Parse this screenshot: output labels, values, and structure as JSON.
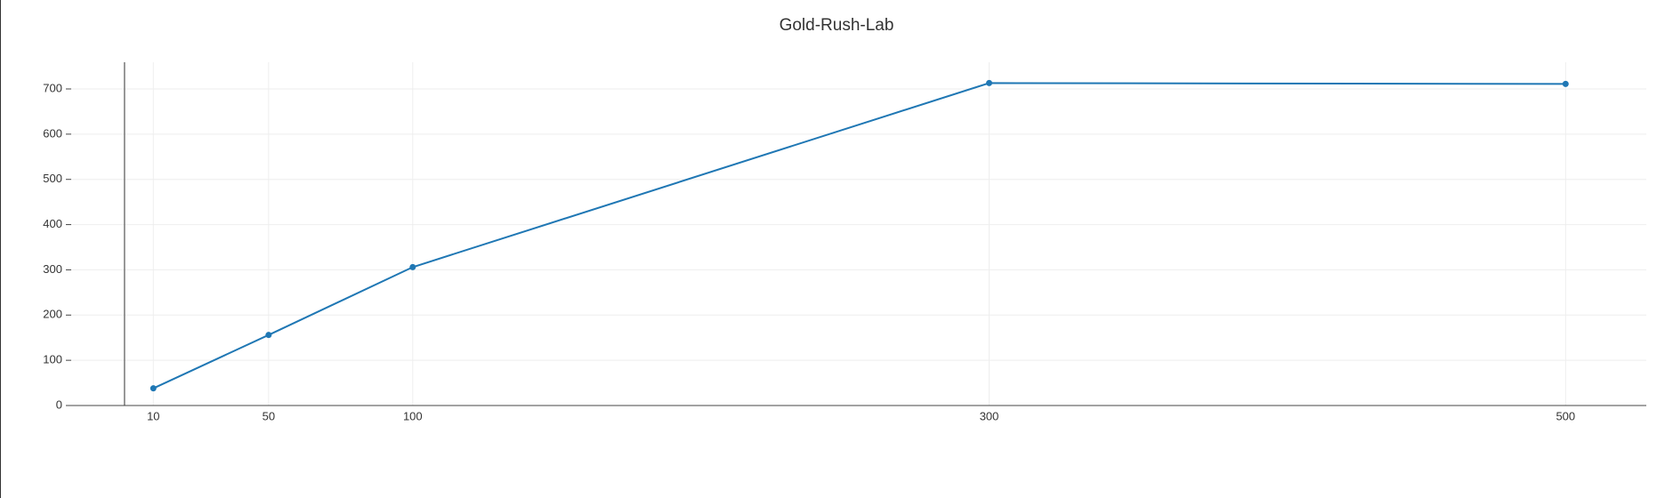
{
  "chart_data": {
    "type": "line",
    "title": "Gold-Rush-Lab",
    "x": [
      10,
      50,
      100,
      300,
      500
    ],
    "values": [
      38,
      156,
      306,
      713,
      711
    ],
    "color": "#1f77b4",
    "xlim": [
      -18.5,
      528
    ],
    "xticks": [
      10,
      50,
      100,
      300,
      500
    ],
    "ylim": [
      0,
      759
    ],
    "yticks": [
      0,
      100,
      200,
      300,
      400,
      500,
      600,
      700
    ],
    "grid": true
  }
}
